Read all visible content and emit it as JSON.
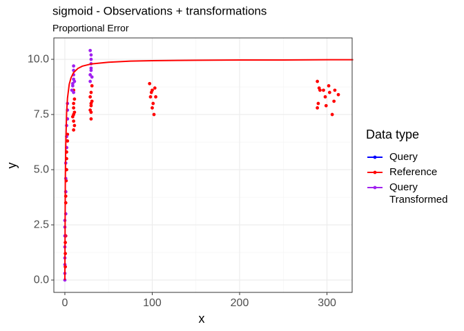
{
  "chart_data": {
    "type": "scatter",
    "title": "sigmoid - Observations + transformations",
    "subtitle": "Proportional Error",
    "x_label": "x",
    "y_label": "y",
    "legend_title": "Data type",
    "legend_position": "right",
    "grid": true,
    "xlim": [
      -12.6,
      328.8
    ],
    "ylim": [
      -0.56,
      10.97
    ],
    "xticks": [
      0,
      100,
      200,
      300
    ],
    "xminor": [
      50,
      150,
      250
    ],
    "yticks": [
      {
        "value": 0,
        "label": "0.0"
      },
      {
        "value": 2.5,
        "label": "2.5"
      },
      {
        "value": 5,
        "label": "5.0"
      },
      {
        "value": 7.5,
        "label": "7.5"
      },
      {
        "value": 10,
        "label": "10.0"
      }
    ],
    "yminor": [
      1.25,
      3.75,
      6.25,
      8.75
    ],
    "series": [
      {
        "name": "Query",
        "color": "#0000ff",
        "x": [],
        "values": []
      },
      {
        "name": "Reference",
        "color": "#ff0000",
        "x": [
          0.5,
          0.5,
          0.5,
          1,
          1,
          1,
          1,
          1.5,
          2,
          2,
          2,
          3,
          3,
          2,
          10,
          10,
          10,
          10,
          10,
          11,
          11,
          9,
          10,
          11,
          30,
          30,
          30,
          31,
          29,
          30,
          31,
          30,
          29,
          97,
          100,
          98,
          103,
          104,
          101,
          100,
          102,
          99,
          289,
          291,
          289,
          290,
          296,
          299,
          302,
          303,
          306,
          308,
          309,
          313,
          298,
          292
        ],
        "values": [
          0.6,
          1.2,
          1.7,
          2.0,
          3.5,
          3.8,
          4.0,
          4.5,
          5.0,
          5.5,
          6.0,
          6.3,
          6.6,
          5.8,
          6.8,
          7.2,
          7.5,
          7.8,
          8.0,
          7.6,
          8.2,
          7.4,
          8.6,
          7.0,
          7.3,
          7.6,
          7.9,
          8.1,
          8.3,
          8.5,
          8.8,
          8.0,
          7.7,
          8.9,
          8.6,
          8.3,
          8.7,
          8.3,
          8.0,
          7.8,
          7.5,
          8.5,
          9.0,
          8.7,
          7.8,
          8.0,
          8.6,
          7.9,
          8.8,
          8.5,
          7.5,
          8.1,
          8.6,
          8.4,
          8.3,
          8.6
        ]
      },
      {
        "name": "Query Transformed",
        "color": "#a020f0",
        "x": [
          0,
          0,
          0,
          0,
          0,
          0,
          0,
          0,
          1,
          1,
          1,
          1,
          2,
          2,
          2,
          3,
          3,
          3,
          8,
          9,
          10,
          10,
          10,
          10,
          11,
          9,
          10,
          29,
          29,
          30,
          30,
          30,
          30,
          29,
          31,
          30
        ],
        "values": [
          0.0,
          0.3,
          0.7,
          1.0,
          1.5,
          2.0,
          2.4,
          2.7,
          3.0,
          4.0,
          4.6,
          5.3,
          6.0,
          6.5,
          7.0,
          7.3,
          7.7,
          8.0,
          8.6,
          8.9,
          9.1,
          9.3,
          9.5,
          9.7,
          9.0,
          8.8,
          8.5,
          9.0,
          9.3,
          9.6,
          9.8,
          10.0,
          10.2,
          10.4,
          9.2,
          9.5
        ]
      }
    ],
    "curve": {
      "color": "#ff0000",
      "x": [
        0,
        0.5,
        1,
        2,
        3,
        5,
        7,
        10,
        15,
        20,
        30,
        50,
        75,
        100,
        150,
        200,
        250,
        300,
        330
      ],
      "values": [
        0,
        4.39,
        6.1,
        7.58,
        8.24,
        8.87,
        9.16,
        9.4,
        9.59,
        9.69,
        9.79,
        9.87,
        9.92,
        9.94,
        9.96,
        9.97,
        9.97,
        9.98,
        9.98
      ]
    }
  }
}
